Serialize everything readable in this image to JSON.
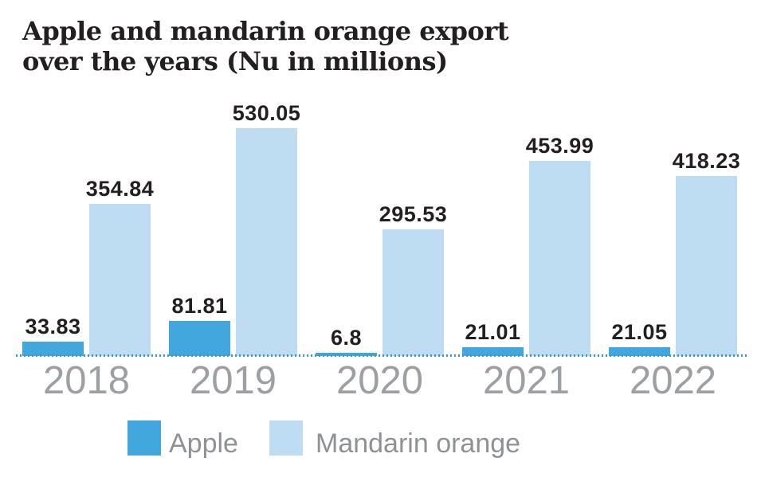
{
  "title": {
    "line1": "Apple and mandarin orange export",
    "line2": "over the years (Nu in millions)"
  },
  "colors": {
    "apple": "#41a7dc",
    "mandarin": "#bedcf2",
    "value_label": "#231f20",
    "year_label": "#9da0a3",
    "legend_text": "#8f9295",
    "baseline_dots": "#2e9fd4",
    "title_text": "#231f20"
  },
  "legend": {
    "items": [
      {
        "label": "Apple",
        "color_key": "apple"
      },
      {
        "label": "Mandarin orange",
        "color_key": "mandarin"
      }
    ]
  },
  "chart_data": {
    "type": "bar",
    "title": "Apple and mandarin orange export over the years (Nu in millions)",
    "categories": [
      "2018",
      "2019",
      "2020",
      "2021",
      "2022"
    ],
    "series": [
      {
        "name": "Apple",
        "color_key": "apple",
        "values": [
          33.83,
          81.81,
          6.8,
          21.01,
          21.05
        ]
      },
      {
        "name": "Mandarin orange",
        "color_key": "mandarin",
        "values": [
          354.84,
          530.05,
          295.53,
          453.99,
          418.23
        ]
      }
    ],
    "xlabel": "",
    "ylabel": "",
    "grid": false,
    "axes_shown": false,
    "value_labels_shown": true,
    "legend_position": "bottom"
  }
}
